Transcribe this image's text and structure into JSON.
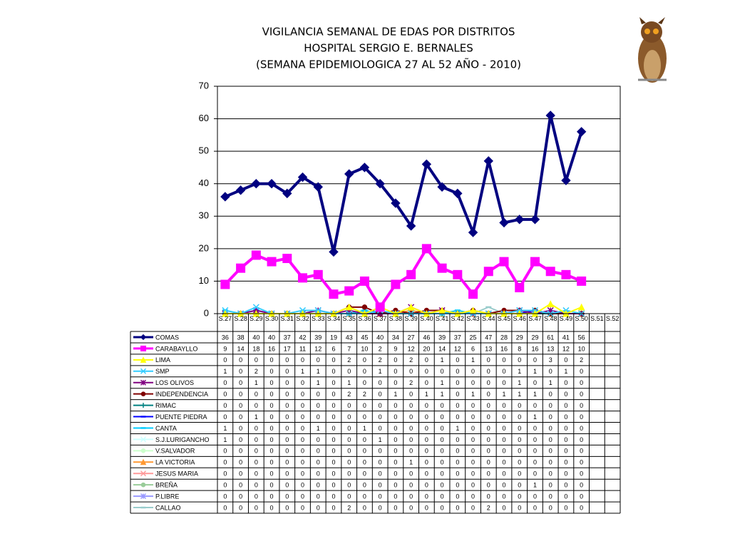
{
  "chart_data": {
    "type": "line",
    "title_lines": [
      "VIGILANCIA SEMANAL DE EDAS POR DISTRITOS",
      "HOSPITAL SERGIO E. BERNALES",
      "(SEMANA EPIDEMIOLOGICA 27 AL 52 AÑO - 2010)"
    ],
    "categories": [
      "S.27",
      "S.28",
      "S.29",
      "S.30",
      "S.31",
      "S.32",
      "S.33",
      "S.34",
      "S.35",
      "S.36",
      "S.37",
      "S.38",
      "S.39",
      "S.40",
      "S.41",
      "S.42",
      "S.43",
      "S.44",
      "S.45",
      "S.46",
      "S.47",
      "S.48",
      "S.49",
      "S.50",
      "S.51",
      "S.52"
    ],
    "ylim": [
      0,
      70
    ],
    "yticks": [
      0,
      10,
      20,
      30,
      40,
      50,
      60,
      70
    ],
    "grid": true,
    "series": [
      {
        "name": "COMAS",
        "color": "#000080",
        "marker": "diamond",
        "values": [
          36,
          38,
          40,
          40,
          37,
          42,
          39,
          19,
          43,
          45,
          40,
          34,
          27,
          46,
          39,
          37,
          25,
          47,
          28,
          29,
          29,
          61,
          41,
          56,
          null,
          null
        ]
      },
      {
        "name": "CARABAYLLO",
        "color": "#ff00ff",
        "marker": "square",
        "values": [
          9,
          14,
          18,
          16,
          17,
          11,
          12,
          6,
          7,
          10,
          2,
          9,
          12,
          20,
          14,
          12,
          6,
          13,
          16,
          8,
          16,
          13,
          12,
          10,
          null,
          null
        ]
      },
      {
        "name": "LIMA",
        "color": "#ffff00",
        "marker": "triangle",
        "values": [
          0,
          0,
          0,
          0,
          0,
          0,
          0,
          0,
          2,
          0,
          2,
          0,
          2,
          0,
          1,
          0,
          1,
          0,
          0,
          0,
          0,
          3,
          0,
          2,
          null,
          null
        ]
      },
      {
        "name": "SMP",
        "color": "#33ccff",
        "marker": "x",
        "values": [
          1,
          0,
          2,
          0,
          0,
          1,
          1,
          0,
          0,
          0,
          1,
          0,
          0,
          0,
          0,
          0,
          0,
          0,
          0,
          1,
          1,
          0,
          1,
          0,
          null,
          null
        ]
      },
      {
        "name": "LOS OLIVOS",
        "color": "#800080",
        "marker": "star",
        "values": [
          0,
          0,
          1,
          0,
          0,
          0,
          1,
          0,
          1,
          0,
          0,
          0,
          2,
          0,
          1,
          0,
          0,
          0,
          0,
          1,
          0,
          1,
          0,
          0,
          null,
          null
        ]
      },
      {
        "name": "INDEPENDENCIA",
        "color": "#800000",
        "marker": "circle",
        "values": [
          0,
          0,
          0,
          0,
          0,
          0,
          0,
          0,
          2,
          2,
          0,
          1,
          0,
          1,
          1,
          0,
          1,
          0,
          1,
          1,
          1,
          0,
          0,
          0,
          null,
          null
        ]
      },
      {
        "name": "RIMAC",
        "color": "#008080",
        "marker": "plus",
        "values": [
          0,
          0,
          0,
          0,
          0,
          0,
          0,
          0,
          0,
          0,
          0,
          0,
          0,
          0,
          0,
          0,
          0,
          0,
          0,
          0,
          0,
          0,
          0,
          0,
          null,
          null
        ]
      },
      {
        "name": "PUENTE PIEDRA",
        "color": "#0000ff",
        "marker": "dash",
        "values": [
          0,
          0,
          1,
          0,
          0,
          0,
          0,
          0,
          0,
          0,
          0,
          0,
          0,
          0,
          0,
          0,
          0,
          0,
          0,
          0,
          1,
          0,
          0,
          0,
          null,
          null
        ]
      },
      {
        "name": "CANTA",
        "color": "#00ccff",
        "marker": "dash",
        "values": [
          1,
          0,
          0,
          0,
          0,
          0,
          1,
          0,
          0,
          1,
          0,
          0,
          0,
          0,
          0,
          1,
          0,
          0,
          0,
          0,
          0,
          0,
          0,
          0,
          null,
          null
        ]
      },
      {
        "name": "S.J.LURIGANCHO",
        "color": "#ccffff",
        "marker": "x",
        "values": [
          1,
          0,
          0,
          0,
          0,
          0,
          0,
          0,
          0,
          0,
          1,
          0,
          0,
          0,
          0,
          0,
          0,
          0,
          0,
          0,
          0,
          0,
          0,
          0,
          null,
          null
        ]
      },
      {
        "name": "V.SALVADOR",
        "color": "#ccffcc",
        "marker": "circle",
        "values": [
          0,
          0,
          0,
          0,
          0,
          0,
          0,
          0,
          0,
          0,
          0,
          0,
          0,
          0,
          0,
          0,
          0,
          0,
          0,
          0,
          0,
          0,
          0,
          0,
          null,
          null
        ]
      },
      {
        "name": "LA VICTORIA",
        "color": "#ff9933",
        "marker": "triangle",
        "values": [
          0,
          0,
          0,
          0,
          0,
          0,
          0,
          0,
          0,
          0,
          0,
          0,
          1,
          0,
          0,
          0,
          0,
          0,
          0,
          0,
          0,
          0,
          0,
          0,
          null,
          null
        ]
      },
      {
        "name": "JESUS MARIA",
        "color": "#ff9999",
        "marker": "x",
        "values": [
          0,
          0,
          0,
          0,
          0,
          0,
          0,
          0,
          0,
          0,
          0,
          0,
          0,
          0,
          0,
          0,
          0,
          0,
          0,
          0,
          0,
          0,
          0,
          0,
          null,
          null
        ]
      },
      {
        "name": "BREÑA",
        "color": "#99cc99",
        "marker": "circle",
        "values": [
          0,
          0,
          0,
          0,
          0,
          0,
          0,
          0,
          0,
          0,
          0,
          0,
          0,
          0,
          0,
          0,
          0,
          0,
          0,
          0,
          1,
          0,
          0,
          0,
          null,
          null
        ]
      },
      {
        "name": "P.LIBRE",
        "color": "#9999ff",
        "marker": "star",
        "values": [
          0,
          0,
          0,
          0,
          0,
          0,
          0,
          0,
          0,
          0,
          0,
          0,
          0,
          0,
          0,
          0,
          0,
          0,
          0,
          0,
          0,
          0,
          0,
          0,
          null,
          null
        ]
      },
      {
        "name": "CALLAO",
        "color": "#99cccc",
        "marker": "dash",
        "values": [
          0,
          0,
          0,
          0,
          0,
          0,
          0,
          0,
          2,
          0,
          0,
          0,
          0,
          0,
          0,
          0,
          0,
          2,
          0,
          0,
          0,
          0,
          0,
          0,
          null,
          null
        ]
      }
    ]
  }
}
